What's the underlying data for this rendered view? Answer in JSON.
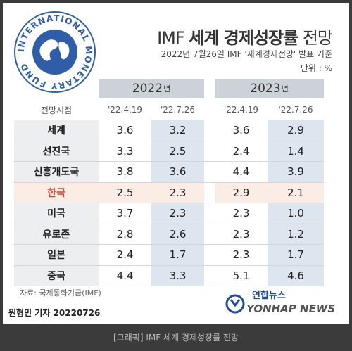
{
  "logo_text": "INTERNATIONAL MONETARY FUND",
  "header": {
    "title_parts": [
      "IMF ",
      "세계 경제성장률",
      " 전망"
    ],
    "subtitle": "2022년 7월26일 IMF '세계경제전망' 발표 기준",
    "unit": "단위 : %"
  },
  "table": {
    "years": [
      {
        "year": "2022",
        "suffix": "년"
      },
      {
        "year": "2023",
        "suffix": "년"
      }
    ],
    "subheader": [
      "전망시점",
      "'22.4.19",
      "'22.7.26",
      "'22.4.19",
      "'22.7.26"
    ],
    "rows": [
      [
        "세계",
        "3.6",
        "3.2",
        "3.6",
        "2.9"
      ],
      [
        "선진국",
        "3.3",
        "2.5",
        "2.4",
        "1.4"
      ],
      [
        "신흥개도국",
        "3.8",
        "3.6",
        "4.4",
        "3.9"
      ],
      [
        "한국",
        "2.5",
        "2.3",
        "2.9",
        "2.1"
      ],
      [
        "미국",
        "3.7",
        "2.3",
        "2.3",
        "1.0"
      ],
      [
        "유로존",
        "2.8",
        "2.6",
        "2.3",
        "1.2"
      ],
      [
        "일본",
        "2.4",
        "1.7",
        "2.3",
        "1.7"
      ],
      [
        "중국",
        "4.4",
        "3.3",
        "5.1",
        "4.6"
      ]
    ]
  },
  "source": "자료: 국제통화기금(IMF)",
  "byline": "원형민 기자  20220726",
  "agency": {
    "korean": "연합뉴스",
    "english": "YONHAP NEWS"
  },
  "caption": "[그래픽] IMF 세계 경제성장률 전망"
}
